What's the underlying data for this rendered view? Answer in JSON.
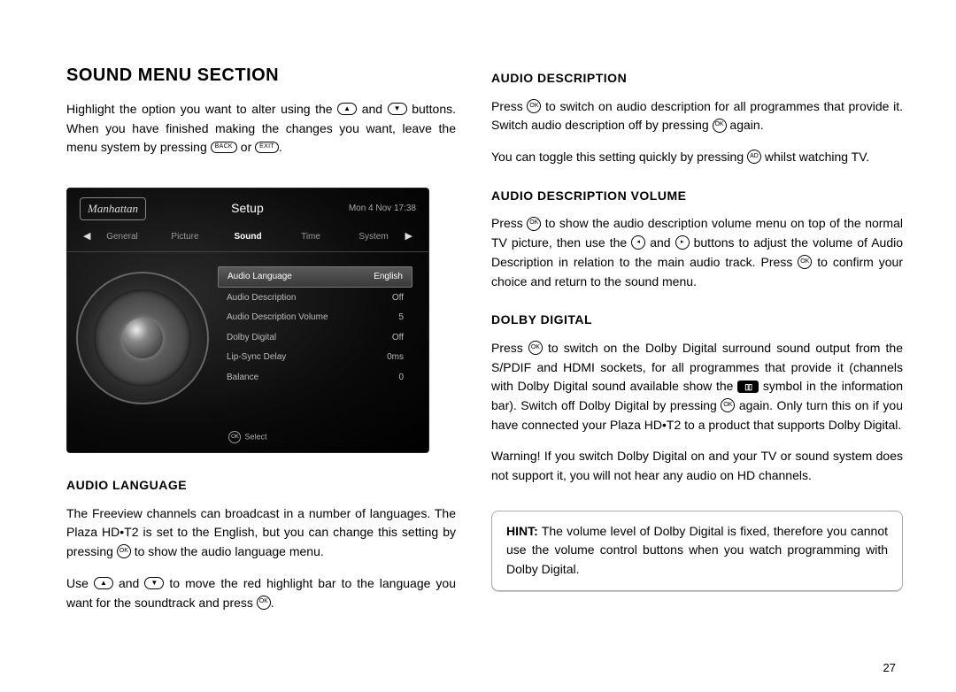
{
  "page_number": "27",
  "section_title": "SOUND MENU SECTION",
  "intro": {
    "p1a": "Highlight the option you want to alter using the ",
    "p1b": " and ",
    "p1c": " buttons. When you have finished making the changes you want, leave the menu system by pressing ",
    "p1d": " or ",
    "p1e": "."
  },
  "buttons": {
    "up": "▲",
    "down": "▼",
    "left": "◂",
    "right": "▸",
    "back": "BACK",
    "exit": "EXIT",
    "ok": "OK",
    "ad": "AD"
  },
  "tv": {
    "logo": "Manhattan",
    "title": "Setup",
    "datetime": "Mon 4 Nov 17:38",
    "tabs": [
      "General",
      "Picture",
      "Sound",
      "Time",
      "System"
    ],
    "active_tab_index": 2,
    "menu": [
      {
        "label": "Audio Language",
        "value": "English",
        "selected": true
      },
      {
        "label": "Audio Description",
        "value": "Off",
        "selected": false
      },
      {
        "label": "Audio Description Volume",
        "value": "5",
        "selected": false
      },
      {
        "label": "Dolby Digital",
        "value": "Off",
        "selected": false
      },
      {
        "label": "Lip-Sync Delay",
        "value": "0ms",
        "selected": false
      },
      {
        "label": "Balance",
        "value": "0",
        "selected": false
      }
    ],
    "footer_label": "Select",
    "footer_badge": "OK"
  },
  "audio_language": {
    "heading": "AUDIO LANGUAGE",
    "p1a": "The Freeview channels can broadcast in a number of languages. The Plaza HD•T2 is set to the English, but you can change this setting by pressing ",
    "p1b": " to show the audio language menu.",
    "p2a": "Use ",
    "p2b": " and ",
    "p2c": " to move the red highlight bar to the language you want for the soundtrack and press ",
    "p2d": "."
  },
  "audio_description": {
    "heading": "AUDIO DESCRIPTION",
    "p1a": "Press ",
    "p1b": " to switch on audio description for all programmes that provide it. Switch audio description off by pressing ",
    "p1c": " again.",
    "p2a": "You can toggle this setting quickly by pressing ",
    "p2b": " whilst watching TV."
  },
  "ad_volume": {
    "heading": "AUDIO DESCRIPTION VOLUME",
    "p1a": "Press ",
    "p1b": " to show the audio description volume menu on top of the normal TV picture, then use the ",
    "p1c": " and ",
    "p1d": " buttons to adjust the volume of Audio Description in relation to the main audio track. Press ",
    "p1e": " to confirm your choice and return to the sound menu."
  },
  "dolby": {
    "heading": "DOLBY DIGITAL",
    "p1a": "Press ",
    "p1b": " to switch on the Dolby Digital surround sound output from the S/PDIF and HDMI sockets, for all programmes that provide it (channels with Dolby Digital sound available show the ",
    "p1c": " symbol in the information bar). Switch off Dolby Digital by pressing ",
    "p1d": " again. Only turn this on if you have connected your Plaza HD•T2 to a product that supports Dolby Digital.",
    "p2": "Warning! If you switch Dolby Digital on and your TV or sound system does not support it, you will not hear any audio on HD channels."
  },
  "hint": {
    "label": "HINT:",
    "text": " The volume level of Dolby Digital is fixed, therefore you cannot use the volume control buttons when you watch programming with Dolby Digital."
  },
  "dolby_symbol_glyph": "▯▯"
}
